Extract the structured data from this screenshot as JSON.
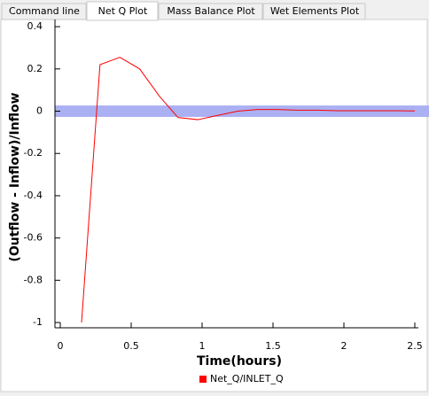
{
  "tabs": [
    "Command line",
    "Net Q Plot",
    "Mass Balance Plot",
    "Wet Elements Plot"
  ],
  "selected_tab": 1,
  "chart_data": {
    "type": "line",
    "x_label": "Time(hours)",
    "y_label": "(Outflow - Inflow)/Inflow",
    "x": [
      0.15,
      0.28,
      0.42,
      0.56,
      0.7,
      0.83,
      0.97,
      1.11,
      1.25,
      1.39,
      1.53,
      1.67,
      1.81,
      1.95,
      2.09,
      2.23,
      2.37,
      2.5
    ],
    "series": [
      {
        "name": "Net_Q/INLET_Q",
        "color": "#ff0000",
        "values": [
          -1.0,
          0.22,
          0.255,
          0.2,
          0.07,
          -0.03,
          -0.04,
          -0.02,
          0.0,
          0.008,
          0.008,
          0.005,
          0.005,
          0.002,
          0.002,
          0.002,
          0.002,
          0.001
        ]
      }
    ],
    "band": [
      -0.027,
      0.027
    ],
    "band_color": "#aab0f2",
    "xlim": [
      -0.0375,
      2.525
    ],
    "ylim": [
      -1.025,
      0.434
    ],
    "xticks": [
      0,
      0.5,
      1,
      1.5,
      2,
      2.5
    ],
    "yticks": [
      -1,
      -0.8,
      -0.6,
      -0.4,
      -0.2,
      0,
      0.2,
      0.4
    ]
  }
}
